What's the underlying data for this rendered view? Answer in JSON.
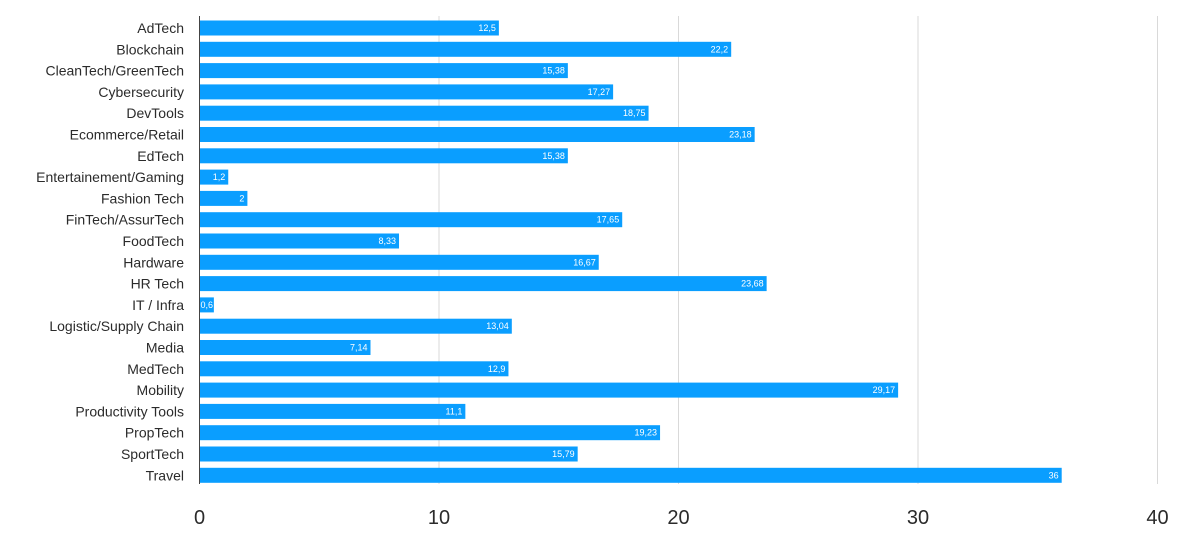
{
  "chart_data": {
    "type": "bar",
    "orientation": "horizontal",
    "title": "",
    "xlabel": "",
    "ylabel": "",
    "categories": [
      "AdTech",
      "Blockchain",
      "CleanTech/GreenTech",
      "Cybersecurity",
      "DevTools",
      "Ecommerce/Retail",
      "EdTech",
      "Entertainement/Gaming",
      "Fashion Tech",
      "FinTech/AssurTech",
      "FoodTech",
      "Hardware",
      "HR Tech",
      "IT / Infra",
      "Logistic/Supply Chain",
      "Media",
      "MedTech",
      "Mobility",
      "Productivity Tools",
      "PropTech",
      "SportTech",
      "Travel"
    ],
    "values": [
      12.5,
      22.2,
      15.38,
      17.27,
      18.75,
      23.18,
      15.38,
      1.2,
      2,
      17.65,
      8.33,
      16.67,
      23.68,
      0.6,
      13.04,
      7.14,
      12.9,
      29.17,
      11.1,
      19.23,
      15.79,
      36
    ],
    "value_labels": [
      "12,5",
      "22,2",
      "15,38",
      "17,27",
      "18,75",
      "23,18",
      "15,38",
      "1,2",
      "2",
      "17,65",
      "8,33",
      "16,67",
      "23,68",
      "0,6",
      "13,04",
      "7,14",
      "12,9",
      "29,17",
      "11,1",
      "19,23",
      "15,79",
      "36"
    ],
    "xlim": [
      0,
      40
    ],
    "x_ticks": [
      0,
      10,
      20,
      30,
      40
    ],
    "x_tick_labels": [
      "0",
      "10",
      "20",
      "30",
      "40"
    ],
    "grid": true,
    "bar_color": "#0a9eff",
    "value_label_color": "#ffffff"
  }
}
